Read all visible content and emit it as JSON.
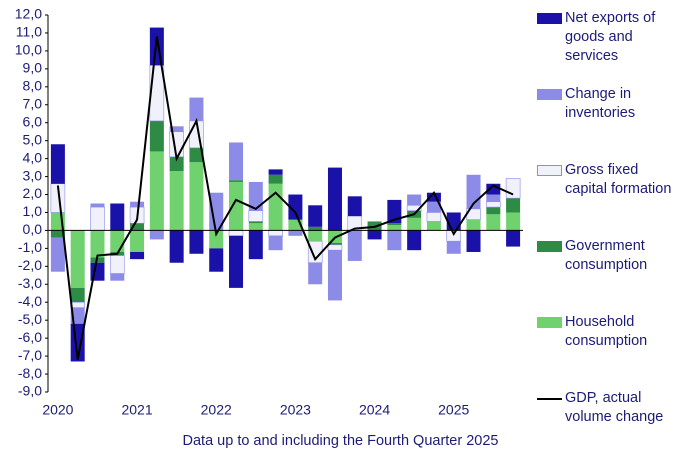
{
  "chart_data": {
    "type": "stacked-bar",
    "caption": "Data up to and including the Fourth Quarter 2025",
    "categories": [
      "2020",
      null,
      null,
      null,
      "2021",
      null,
      null,
      null,
      "2022",
      null,
      null,
      null,
      "2023",
      null,
      null,
      null,
      "2024",
      null,
      null,
      null,
      "2025",
      null,
      null,
      null
    ],
    "series": [
      {
        "name": "Household consumption",
        "color": "#6fd26f",
        "values": [
          1.0,
          -3.2,
          -1.5,
          -1.2,
          -1.2,
          4.4,
          3.3,
          3.8,
          -1.0,
          2.7,
          0.4,
          2.6,
          0.6,
          -0.6,
          -0.7,
          0.0,
          0.0,
          0.3,
          0.7,
          0.5,
          0.0,
          0.6,
          0.9,
          1.0
        ]
      },
      {
        "name": "Government consumption",
        "color": "#2e8b46",
        "values": [
          -0.4,
          -0.8,
          -0.3,
          -0.2,
          0.4,
          1.7,
          0.8,
          0.8,
          0.0,
          0.1,
          0.1,
          0.5,
          0.0,
          0.2,
          -0.1,
          0.0,
          0.5,
          0.1,
          0.4,
          0.0,
          0.0,
          0.0,
          0.4,
          0.8
        ]
      },
      {
        "name": "Gross fixed capital formation",
        "color": "#f1f1fb",
        "values": [
          1.6,
          -0.3,
          1.3,
          -1.0,
          0.9,
          3.1,
          1.4,
          1.5,
          0.0,
          -0.3,
          0.6,
          -0.3,
          0.0,
          -1.2,
          -0.3,
          0.8,
          0.0,
          0.0,
          0.3,
          0.5,
          -0.6,
          0.6,
          0.3,
          1.1
        ]
      },
      {
        "name": "Change in inventories",
        "color": "#8c8ce8",
        "values": [
          -1.9,
          -0.9,
          0.2,
          -0.4,
          0.3,
          -0.5,
          0.3,
          1.3,
          2.1,
          2.1,
          1.6,
          -0.8,
          -0.3,
          -1.2,
          -2.8,
          -1.7,
          0.0,
          -1.1,
          0.6,
          0.6,
          -0.7,
          1.9,
          0.4,
          0.0
        ]
      },
      {
        "name": "Net exports of goods and services",
        "color": "#1a12a8",
        "values": [
          2.2,
          -2.1,
          -1.0,
          1.5,
          -0.4,
          2.1,
          -1.8,
          -1.3,
          -1.3,
          -2.9,
          -1.6,
          0.3,
          1.4,
          1.2,
          3.5,
          1.1,
          -0.5,
          1.3,
          -1.1,
          0.5,
          1.0,
          -1.2,
          0.6,
          -0.9
        ]
      }
    ],
    "line": {
      "name": "GDP, actual volume change",
      "color": "#000000",
      "values": [
        2.5,
        -7.2,
        -1.4,
        -1.3,
        0.6,
        10.8,
        4.0,
        6.1,
        -0.2,
        1.7,
        1.2,
        2.1,
        1.0,
        -1.6,
        -0.4,
        0.1,
        0.2,
        0.6,
        0.9,
        2.1,
        -0.2,
        1.5,
        2.5,
        2.0
      ]
    },
    "ylim": [
      -9,
      12
    ],
    "yticks": [
      {
        "value": -9,
        "label": "-9,0"
      },
      {
        "value": -8,
        "label": "-8,0"
      },
      {
        "value": -7,
        "label": "-7,0"
      },
      {
        "value": -6,
        "label": "-6,0"
      },
      {
        "value": -5,
        "label": "-5,0"
      },
      {
        "value": -4,
        "label": "-4,0"
      },
      {
        "value": -3,
        "label": "-3,0"
      },
      {
        "value": -2,
        "label": "-2,0"
      },
      {
        "value": -1,
        "label": "-1,0"
      },
      {
        "value": 0,
        "label": "0,0"
      },
      {
        "value": 1,
        "label": "1,0"
      },
      {
        "value": 2,
        "label": "2,0"
      },
      {
        "value": 3,
        "label": "3,0"
      },
      {
        "value": 4,
        "label": "4,0"
      },
      {
        "value": 5,
        "label": "5,0"
      },
      {
        "value": 6,
        "label": "6,0"
      },
      {
        "value": 7,
        "label": "7,0"
      },
      {
        "value": 8,
        "label": "8,0"
      },
      {
        "value": 9,
        "label": "9,0"
      },
      {
        "value": 10,
        "label": "10,0"
      },
      {
        "value": 11,
        "label": "11,0"
      },
      {
        "value": 12,
        "label": "12,0"
      }
    ],
    "legend": "right"
  }
}
